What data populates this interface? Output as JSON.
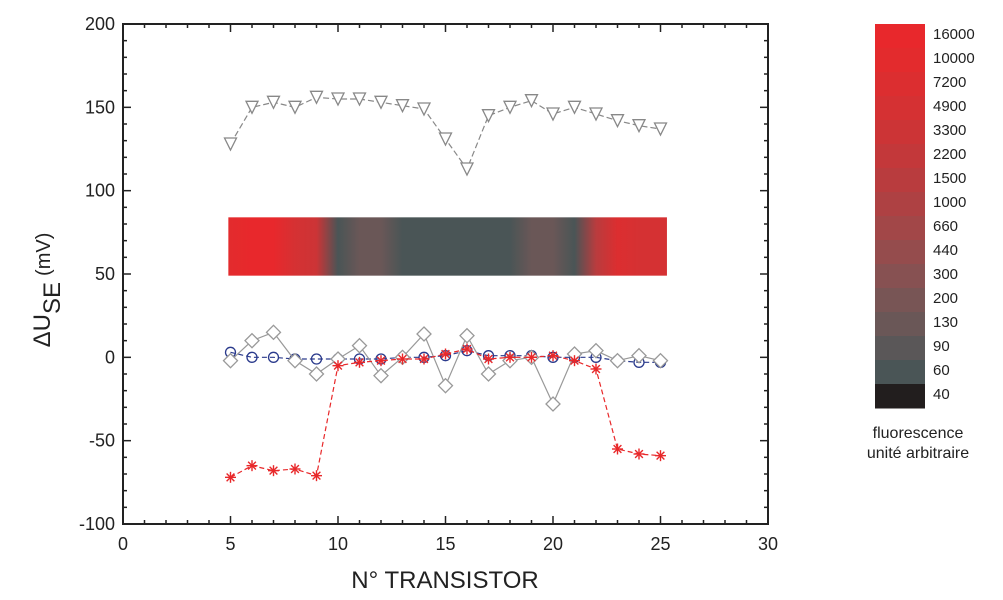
{
  "chart_data": {
    "type": "scatter",
    "title": "",
    "xlabel": "N° TRANSISTOR",
    "ylabel": {
      "prefix": "ΔU",
      "subscript": "SE",
      "unit": "(mV)"
    },
    "xlim": [
      0,
      30
    ],
    "ylim": [
      -100,
      200
    ],
    "xticks": [
      "0",
      "5",
      "10",
      "15",
      "20",
      "25",
      "30"
    ],
    "yticks": [
      "-100",
      "-50",
      "0",
      "50",
      "100",
      "150",
      "200"
    ],
    "grid": false,
    "series": [
      {
        "marker": "triangle-down",
        "color": "#888888",
        "x": [
          5,
          6,
          7,
          8,
          9,
          10,
          11,
          12,
          13,
          14,
          15,
          16,
          17,
          18,
          19,
          20,
          21,
          22,
          23,
          24,
          25
        ],
        "y": [
          128,
          150,
          153,
          150,
          156,
          155,
          155,
          153,
          151,
          149,
          131,
          113,
          145,
          150,
          154,
          146,
          150,
          146,
          142,
          139,
          137
        ]
      },
      {
        "marker": "circle",
        "color": "#2a3a8c",
        "x": [
          5,
          6,
          7,
          8,
          9,
          10,
          11,
          12,
          13,
          14,
          15,
          16,
          17,
          18,
          19,
          20,
          21,
          22,
          23,
          24,
          25
        ],
        "y": [
          3,
          0,
          0,
          -1,
          -1,
          -1,
          -1,
          -1,
          0,
          0,
          1,
          4,
          1,
          1,
          1,
          0,
          0,
          0,
          -2,
          -3,
          -3
        ]
      },
      {
        "marker": "diamond",
        "color": "#999999",
        "x": [
          5,
          6,
          7,
          8,
          9,
          10,
          11,
          12,
          13,
          14,
          15,
          16,
          17,
          18,
          19,
          20,
          21,
          22,
          23,
          24,
          25
        ],
        "y": [
          -2,
          10,
          15,
          -2,
          -10,
          -1,
          7,
          -11,
          0,
          14,
          -17,
          13,
          -10,
          -2,
          0,
          -28,
          2,
          4,
          -2,
          1,
          -2
        ]
      },
      {
        "marker": "asterisk",
        "color": "#e8282a",
        "x": [
          5,
          6,
          7,
          8,
          9,
          10,
          11,
          12,
          13,
          14,
          15,
          16,
          17,
          18,
          19,
          20,
          21,
          22,
          23,
          24,
          25
        ],
        "y": [
          -72,
          -65,
          -68,
          -67,
          -71,
          -5,
          -3,
          -2,
          -1,
          -1,
          2,
          5,
          -1,
          0,
          0,
          1,
          -2,
          -7,
          -55,
          -58,
          -59
        ]
      }
    ],
    "fluorescence_band": {
      "x_range": [
        4.9,
        25.3
      ],
      "y_range": [
        49,
        84
      ],
      "levels": [
        {
          "x": 5,
          "value": 10000
        },
        {
          "x": 6,
          "value": 16000
        },
        {
          "x": 7,
          "value": 16000
        },
        {
          "x": 8,
          "value": 4900
        },
        {
          "x": 9,
          "value": 3300
        },
        {
          "x": 10,
          "value": 60
        },
        {
          "x": 11,
          "value": 130
        },
        {
          "x": 12,
          "value": 130
        },
        {
          "x": 13,
          "value": 60
        },
        {
          "x": 14,
          "value": 60
        },
        {
          "x": 15,
          "value": 60
        },
        {
          "x": 16,
          "value": 60
        },
        {
          "x": 17,
          "value": 60
        },
        {
          "x": 18,
          "value": 60
        },
        {
          "x": 19,
          "value": 130
        },
        {
          "x": 20,
          "value": 130
        },
        {
          "x": 21,
          "value": 60
        },
        {
          "x": 22,
          "value": 1500
        },
        {
          "x": 23,
          "value": 7200
        },
        {
          "x": 24,
          "value": 4900
        },
        {
          "x": 25,
          "value": 4900
        }
      ]
    },
    "colorbar": {
      "title_lines": [
        "fluorescence",
        "unité arbitraire"
      ],
      "labels": [
        "16000",
        "10000",
        "7200",
        "4900",
        "3300",
        "2200",
        "1500",
        "1000",
        "660",
        "440",
        "300",
        "200",
        "130",
        "90",
        "60",
        "40"
      ],
      "colors": [
        "#e8282c",
        "#e32b2d",
        "#dc2e30",
        "#d53133",
        "#cc3436",
        "#c3383a",
        "#b93c3e",
        "#ae4143",
        "#a24748",
        "#954c4d",
        "#875152",
        "#785555",
        "#6a5757",
        "#5a5758",
        "#4a5556",
        "#221e1e"
      ]
    }
  }
}
